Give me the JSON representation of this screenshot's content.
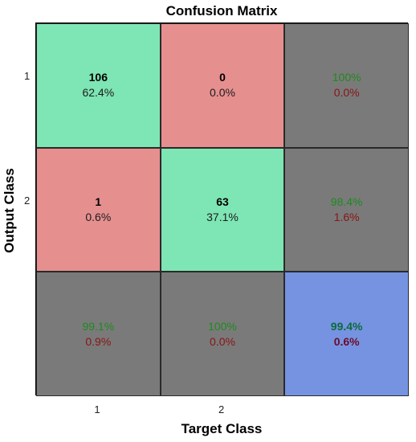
{
  "chart_data": {
    "type": "heatmap",
    "title": "Confusion Matrix",
    "xlabel": "Target Class",
    "ylabel": "Output Class",
    "x_tick_labels": [
      "1",
      "2"
    ],
    "y_tick_labels": [
      "1",
      "2"
    ],
    "counts": [
      [
        106,
        0
      ],
      [
        1,
        63
      ]
    ],
    "percent_of_total": [
      "62.4%",
      "0.0%",
      "0.6%",
      "37.1%"
    ],
    "row_summary": [
      {
        "correct": "100%",
        "incorrect": "0.0%"
      },
      {
        "correct": "98.4%",
        "incorrect": "1.6%"
      }
    ],
    "column_summary": [
      {
        "correct": "99.1%",
        "incorrect": "0.9%"
      },
      {
        "correct": "100%",
        "incorrect": "0.0%"
      }
    ],
    "overall": {
      "correct": "99.4%",
      "incorrect": "0.6%"
    },
    "colors": {
      "correct_cell": "#7ee5b4",
      "incorrect_cell": "#e68f8f",
      "summary_cell": "#7a7a7a",
      "overall_cell": "#7693e2",
      "correct_text": "#1e8a1e",
      "incorrect_text": "#8a1414"
    }
  }
}
